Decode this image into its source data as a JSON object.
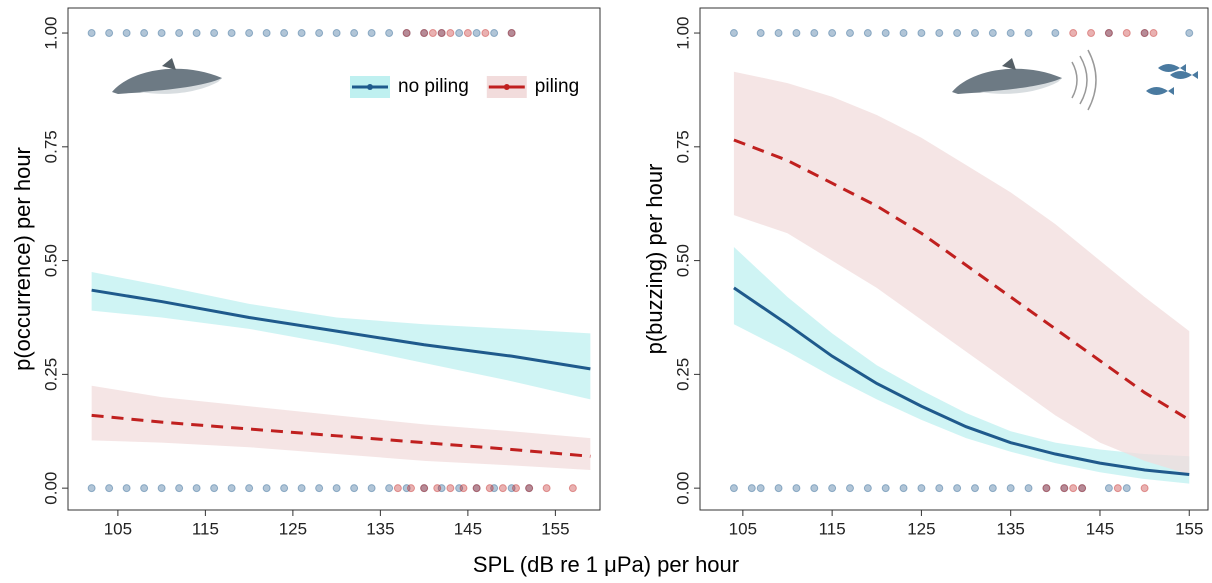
{
  "x_label": "SPL (dB re 1 μPa) per hour",
  "chart_data": [
    {
      "type": "line",
      "ylabel": "p(occurrence) per hour",
      "xlim": [
        99.3,
        160.1
      ],
      "ylim": [
        -0.048,
        1.055
      ],
      "xticks": [
        105,
        115,
        125,
        135,
        145,
        155
      ],
      "yticks": [
        {
          "value": 0,
          "label": "0.00"
        },
        0.25,
        {
          "value": 0.5,
          "label": "0.50"
        },
        0.75,
        {
          "value": 1,
          "label": "1.00"
        }
      ],
      "legend": "top-right",
      "series": [
        {
          "name": "no piling",
          "color": "#1f5a8c",
          "band_color": "#bff0f0",
          "dash": false,
          "x": [
            102,
            110,
            120,
            130,
            140,
            150,
            159
          ],
          "values": [
            0.435,
            0.41,
            0.375,
            0.345,
            0.315,
            0.29,
            0.262
          ],
          "lower": [
            0.39,
            0.375,
            0.35,
            0.315,
            0.275,
            0.235,
            0.195
          ],
          "upper": [
            0.475,
            0.445,
            0.405,
            0.375,
            0.36,
            0.35,
            0.34
          ],
          "rug": [
            {
              "y": 0,
              "x": [
                102,
                104,
                106,
                108,
                110,
                112,
                114,
                116,
                118,
                120,
                122,
                124,
                126,
                128,
                130,
                132,
                134,
                136,
                138,
                140,
                142,
                144,
                146,
                148,
                150,
                152
              ]
            },
            {
              "y": 1,
              "x": [
                102,
                104,
                106,
                108,
                110,
                112,
                114,
                116,
                118,
                120,
                122,
                124,
                126,
                128,
                130,
                132,
                134,
                136,
                138,
                140,
                142,
                144,
                146,
                148,
                150
              ]
            }
          ]
        },
        {
          "name": "piling",
          "color": "#c0201f",
          "band_color": "#f2dcdc",
          "dash": true,
          "x": [
            102,
            110,
            120,
            130,
            140,
            150,
            159
          ],
          "values": [
            0.16,
            0.145,
            0.13,
            0.115,
            0.1,
            0.085,
            0.07
          ],
          "lower": [
            0.105,
            0.1,
            0.09,
            0.075,
            0.06,
            0.05,
            0.04
          ],
          "upper": [
            0.225,
            0.2,
            0.18,
            0.16,
            0.14,
            0.125,
            0.11
          ],
          "rug": [
            {
              "y": 0,
              "x": [
                137,
                138.5,
                140,
                141.5,
                143,
                144.5,
                146,
                147.5,
                149,
                150.5,
                152,
                154,
                157
              ]
            },
            {
              "y": 1,
              "x": [
                138,
                140,
                141,
                142,
                143,
                145,
                147,
                150
              ]
            }
          ]
        }
      ]
    },
    {
      "type": "line",
      "ylabel": "p(buzzing) per hour",
      "xlim": [
        100.2,
        157.1
      ],
      "ylim": [
        -0.048,
        1.055
      ],
      "xticks": [
        105,
        115,
        125,
        135,
        145,
        155
      ],
      "yticks": [
        {
          "value": 0,
          "label": "0.00"
        },
        0.25,
        {
          "value": 0.5,
          "label": "0.50"
        },
        0.75,
        {
          "value": 1,
          "label": "1.00"
        }
      ],
      "series": [
        {
          "color": "#1f5a8c",
          "band_color": "#bff0f0",
          "dash": false,
          "x": [
            104,
            110,
            115,
            120,
            125,
            130,
            135,
            140,
            145,
            150,
            155
          ],
          "values": [
            0.44,
            0.36,
            0.29,
            0.23,
            0.18,
            0.135,
            0.1,
            0.075,
            0.055,
            0.04,
            0.03
          ],
          "lower": [
            0.36,
            0.3,
            0.245,
            0.195,
            0.15,
            0.11,
            0.08,
            0.055,
            0.035,
            0.02,
            0.01
          ],
          "upper": [
            0.53,
            0.42,
            0.34,
            0.27,
            0.215,
            0.165,
            0.125,
            0.1,
            0.085,
            0.075,
            0.07
          ],
          "rug": [
            {
              "y": 0,
              "x": [
                104,
                106,
                107,
                109,
                111,
                113,
                115,
                117,
                119,
                121,
                123,
                125,
                127,
                129,
                131,
                133,
                135,
                137,
                139,
                141,
                143,
                146,
                148
              ]
            },
            {
              "y": 1,
              "x": [
                104,
                107,
                109,
                111,
                113,
                115,
                117,
                119,
                121,
                123,
                125,
                127,
                129,
                131,
                133,
                135,
                137,
                140,
                146,
                150,
                155
              ]
            }
          ]
        },
        {
          "color": "#c0201f",
          "band_color": "#f2dcdc",
          "dash": true,
          "x": [
            104,
            110,
            115,
            120,
            125,
            130,
            135,
            140,
            145,
            150,
            155
          ],
          "values": [
            0.765,
            0.72,
            0.67,
            0.62,
            0.56,
            0.49,
            0.42,
            0.35,
            0.28,
            0.21,
            0.15
          ],
          "lower": [
            0.6,
            0.56,
            0.5,
            0.44,
            0.37,
            0.3,
            0.23,
            0.16,
            0.1,
            0.06,
            0.03
          ],
          "upper": [
            0.915,
            0.89,
            0.86,
            0.82,
            0.77,
            0.71,
            0.65,
            0.58,
            0.5,
            0.42,
            0.345
          ],
          "rug": [
            {
              "y": 0,
              "x": [
                139,
                141,
                142,
                143,
                147,
                150
              ]
            },
            {
              "y": 1,
              "x": [
                142,
                144,
                146,
                148,
                150,
                151
              ]
            }
          ]
        }
      ]
    }
  ]
}
